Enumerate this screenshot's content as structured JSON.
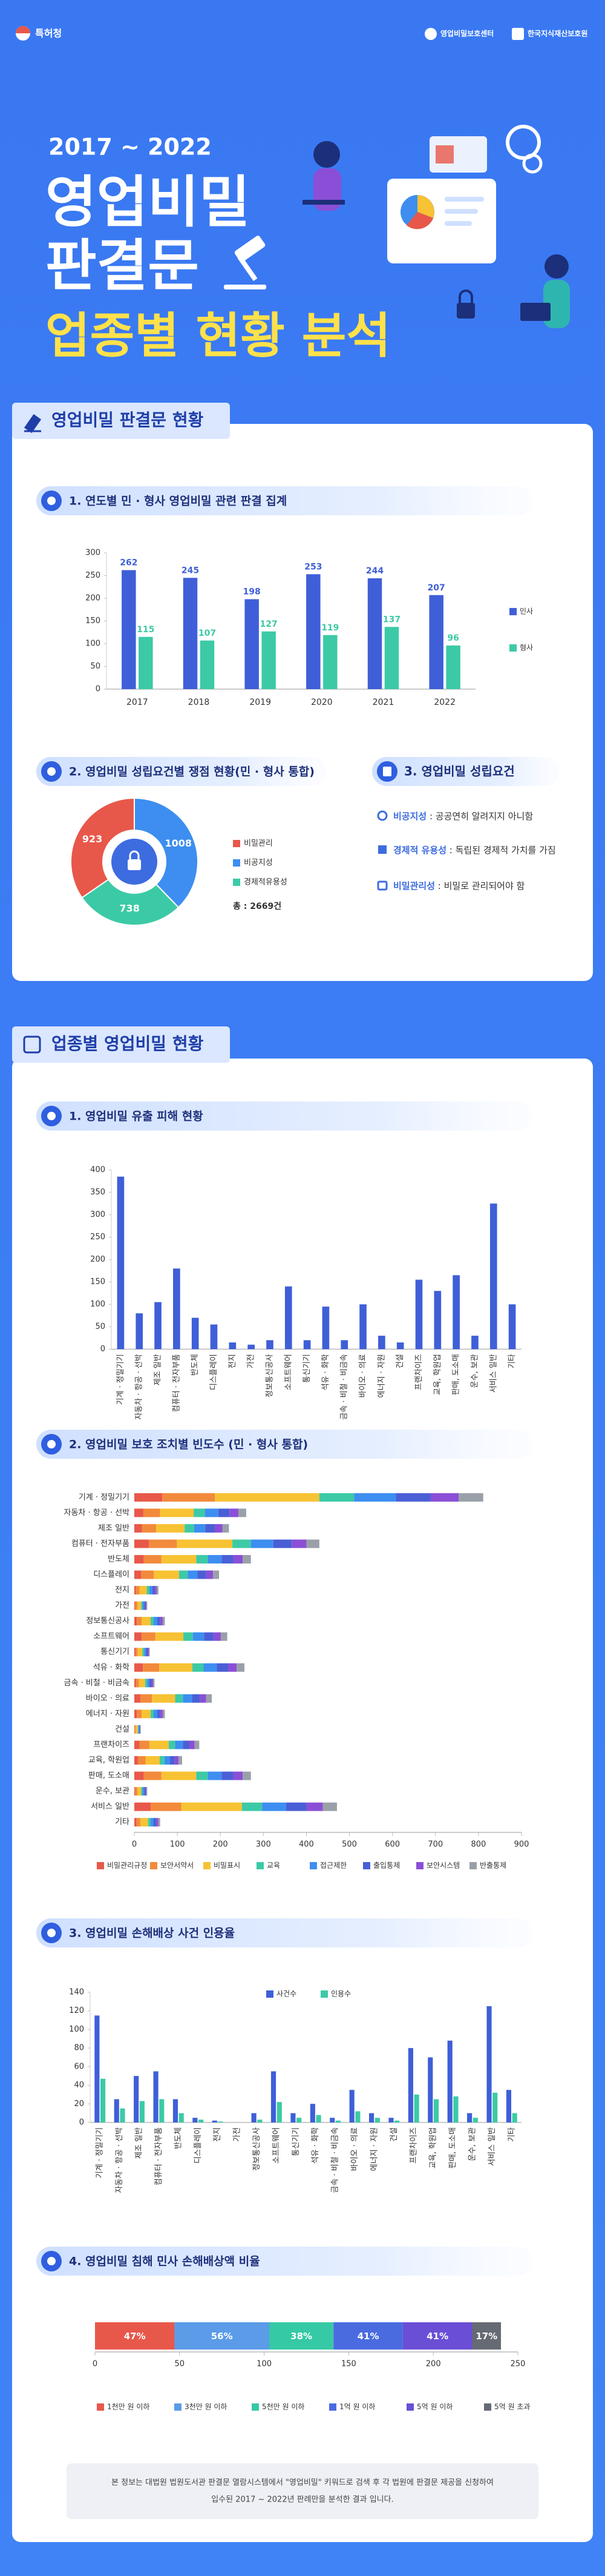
{
  "header": {
    "agency": "특허청",
    "partners": [
      "영업비밀보호센터",
      "한국지식재산보호원"
    ],
    "period": "2017 ~ 2022",
    "title": [
      "영업비밀",
      "판결문"
    ],
    "subtitle": "업종별 현황 분석"
  },
  "sections": [
    "영업비밀 판결문 현황",
    "업종별 영업비밀 현황"
  ],
  "requirements": {
    "title": "3. 영업비밀 성립요건",
    "items": [
      {
        "term": "비공지성",
        "desc": " : 공공연히 알려지지 아니함"
      },
      {
        "term": "경제적 유용성",
        "desc": " : 독립된 경제적 가치를 가짐"
      },
      {
        "term": "비밀관리성",
        "desc": " : 비밀로 관리되어야 함"
      }
    ]
  },
  "note": [
    "본 정보는 대법원 법원도서관 판결문 열람시스템에서 \"영업비밀\" 키워드로 검색 후 각 법원에 판결문 제공을 신청하여",
    "입수된 2017 ~ 2022년 판례만을 분석한 결과 입니다."
  ],
  "chart_data": [
    {
      "type": "bar",
      "title": "1. 연도별 민 · 형사 영업비밀 관련 판결 집계",
      "categories": [
        "2017",
        "2018",
        "2019",
        "2020",
        "2021",
        "2022"
      ],
      "series": [
        {
          "name": "민사",
          "color": "#3f5fd8",
          "values": [
            262,
            245,
            198,
            253,
            244,
            207
          ]
        },
        {
          "name": "형사",
          "color": "#3ccaa6",
          "values": [
            115,
            107,
            127,
            119,
            137,
            96
          ]
        }
      ],
      "ylim": [
        0,
        300
      ],
      "yticks": [
        0,
        50,
        100,
        150,
        200,
        250,
        300
      ],
      "data_labels": true,
      "legend": "right",
      "grid": false
    },
    {
      "type": "pie",
      "title": "2. 영업비밀 성립요건별 쟁점 현황(민 · 형사 통합)",
      "categories": [
        "비밀관리",
        "비공지성",
        "경제적유용성"
      ],
      "values": [
        923,
        1008,
        738
      ],
      "colors": [
        "#e8584a",
        "#3d8ef0",
        "#3ccaa6"
      ],
      "total": "총 : 2669건",
      "donut": true,
      "legend": "right"
    },
    {
      "type": "bar",
      "title": "1. 영업비밀 유출 피해 현황",
      "categories": [
        "기계 · 정밀기기",
        "자동차 · 항공 · 선박",
        "제조 일반",
        "컴퓨터 · 전자부품",
        "반도체",
        "디스플레이",
        "전지",
        "가전",
        "정보통신공사",
        "소프트웨어",
        "통신기기",
        "석유 · 화학",
        "금속 · 비철 · 비금속",
        "바이오 · 의료",
        "에너지 · 자원",
        "건설",
        "프랜차이즈",
        "교육, 학원업",
        "판매, 도소매",
        "운수, 보관",
        "서비스 일반",
        "기타"
      ],
      "values": [
        385,
        80,
        105,
        180,
        70,
        55,
        15,
        10,
        20,
        140,
        20,
        95,
        20,
        100,
        30,
        15,
        155,
        130,
        165,
        30,
        325,
        100
      ],
      "color": "#3f5fd8",
      "ylim": [
        0,
        400
      ],
      "yticks": [
        0,
        50,
        100,
        150,
        200,
        250,
        300,
        350,
        400
      ],
      "grid": false
    },
    {
      "type": "stacked_bar_h",
      "title": "2. 영업비밀 보호 조치별 빈도수 (민 · 형사 통합)",
      "categories": [
        "기계 · 정밀기기",
        "자동차 · 항공 · 선박",
        "제조 일반",
        "컴퓨터 · 전자부품",
        "반도체",
        "디스플레이",
        "전지",
        "가전",
        "정보통신공사",
        "소프트웨어",
        "통신기기",
        "석유 · 화학",
        "금속 · 비철 · 비금속",
        "바이오 · 의료",
        "에너지 · 자원",
        "건설",
        "프랜차이즈",
        "교육, 학원업",
        "판매, 도소매",
        "운수, 보관",
        "서비스 일반",
        "기타"
      ],
      "series": [
        {
          "name": "비밀관리규정",
          "color": "#e8584a",
          "values": [
            65,
            21,
            18,
            34,
            22,
            16,
            4,
            2,
            6,
            17,
            3,
            20,
            4,
            14,
            6,
            1,
            12,
            9,
            22,
            2,
            38,
            5
          ]
        },
        {
          "name": "보안서약서",
          "color": "#f28a3c",
          "values": [
            122,
            39,
            33,
            65,
            41,
            29,
            8,
            5,
            11,
            32,
            5,
            38,
            7,
            27,
            11,
            2,
            23,
            17,
            41,
            5,
            71,
            9
          ]
        },
        {
          "name": "비밀표시",
          "color": "#f7c233",
          "values": [
            243,
            78,
            66,
            129,
            81,
            59,
            17,
            9,
            21,
            65,
            11,
            77,
            14,
            54,
            21,
            5,
            45,
            33,
            81,
            9,
            141,
            18
          ]
        },
        {
          "name": "교육",
          "color": "#3ccaa6",
          "values": [
            81,
            26,
            22,
            43,
            27,
            20,
            6,
            3,
            7,
            22,
            4,
            26,
            5,
            18,
            7,
            2,
            15,
            11,
            27,
            3,
            47,
            6
          ]
        },
        {
          "name": "접근제한",
          "color": "#3d8ef0",
          "values": [
            97,
            31,
            26,
            52,
            32,
            23,
            7,
            4,
            8,
            26,
            4,
            31,
            5,
            22,
            8,
            2,
            18,
            13,
            32,
            4,
            56,
            7
          ]
        },
        {
          "name": "출입통제",
          "color": "#4a5fd6",
          "values": [
            81,
            26,
            22,
            43,
            27,
            20,
            6,
            3,
            7,
            22,
            4,
            26,
            5,
            18,
            7,
            1,
            15,
            11,
            27,
            3,
            47,
            6
          ]
        },
        {
          "name": "보안시스템",
          "color": "#8a4fd6",
          "values": [
            65,
            21,
            18,
            34,
            22,
            16,
            4,
            2,
            6,
            17,
            3,
            20,
            4,
            14,
            6,
            1,
            12,
            9,
            22,
            2,
            38,
            5
          ]
        },
        {
          "name": "반출통제",
          "color": "#9aa0a8",
          "values": [
            57,
            18,
            15,
            30,
            19,
            14,
            4,
            2,
            5,
            15,
            2,
            18,
            3,
            13,
            5,
            1,
            11,
            8,
            19,
            2,
            33,
            4
          ]
        }
      ],
      "xlim": [
        0,
        900
      ],
      "xticks": [
        0,
        100,
        200,
        300,
        400,
        500,
        600,
        700,
        800,
        900
      ],
      "legend": "bottom"
    },
    {
      "type": "bar",
      "title": "3. 영업비밀 손해배상 사건 인용율",
      "categories": [
        "기계 · 정밀기기",
        "자동차 · 항공 · 선박",
        "제조 일반",
        "컴퓨터 · 전자부품",
        "반도체",
        "디스플레이",
        "전지",
        "가전",
        "정보통신공사",
        "소프트웨어",
        "통신기기",
        "석유 · 화학",
        "금속 · 비철 · 비금속",
        "바이오 · 의료",
        "에너지 · 자원",
        "건설",
        "프랜차이즈",
        "교육, 학원업",
        "판매, 도소매",
        "운수, 보관",
        "서비스 일반",
        "기타"
      ],
      "series": [
        {
          "name": "사건수",
          "color": "#3f5fd8",
          "values": [
            115,
            25,
            50,
            55,
            25,
            5,
            2,
            0,
            10,
            55,
            10,
            20,
            5,
            35,
            10,
            5,
            80,
            70,
            88,
            10,
            125,
            35
          ]
        },
        {
          "name": "인용수",
          "color": "#3ccaa6",
          "values": [
            47,
            15,
            23,
            25,
            10,
            3,
            1,
            0,
            3,
            22,
            5,
            8,
            2,
            12,
            5,
            2,
            30,
            25,
            28,
            5,
            32,
            10
          ]
        }
      ],
      "ylim": [
        0,
        140
      ],
      "yticks": [
        0,
        20,
        40,
        60,
        80,
        100,
        120,
        140
      ],
      "legend": "top",
      "grid": false
    },
    {
      "type": "stacked_bar_h",
      "title": "4. 영업비밀 침해 민사 손해배상액 비율",
      "series": [
        {
          "name": "1천만 원 이하",
          "color": "#e8584a",
          "values": [
            47
          ],
          "value_labels": [
            "47%"
          ]
        },
        {
          "name": "3천만 원 이하",
          "color": "#5b9be8",
          "values": [
            56
          ],
          "value_labels": [
            "56%"
          ]
        },
        {
          "name": "5천만 원 이하",
          "color": "#36c9a5",
          "values": [
            38
          ],
          "value_labels": [
            "38%"
          ]
        },
        {
          "name": "1억 원 이하",
          "color": "#4a6be0",
          "values": [
            41
          ],
          "value_labels": [
            "41%"
          ]
        },
        {
          "name": "5억 원 이하",
          "color": "#6a4fd6",
          "values": [
            41
          ],
          "value_labels": [
            "41%"
          ]
        },
        {
          "name": "5억 원 초과",
          "color": "#666a73",
          "values": [
            17
          ],
          "value_labels": [
            "17%"
          ]
        }
      ],
      "xlim": [
        0,
        250
      ],
      "xticks": [
        0,
        50,
        100,
        150,
        200,
        250
      ],
      "legend": "bottom"
    }
  ]
}
